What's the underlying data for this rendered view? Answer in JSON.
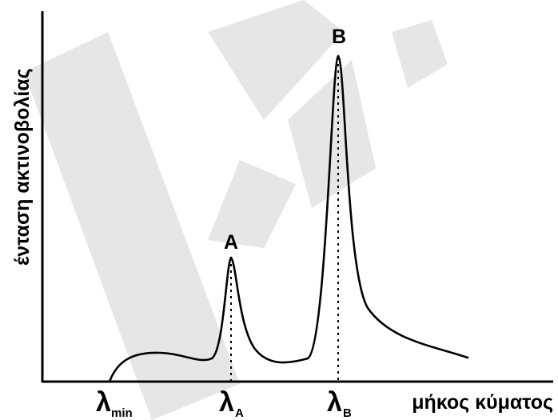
{
  "diagram": {
    "y_axis_label": "ένταση ακτινοβολίας",
    "x_axis_label": "μήκος κύματος",
    "peaks": [
      {
        "label": "A"
      },
      {
        "label": "B"
      }
    ],
    "x_marks": [
      {
        "symbol": "λ",
        "subscript": "min"
      },
      {
        "symbol": "λ",
        "subscript": "A"
      },
      {
        "symbol": "λ",
        "subscript": "B"
      }
    ]
  }
}
